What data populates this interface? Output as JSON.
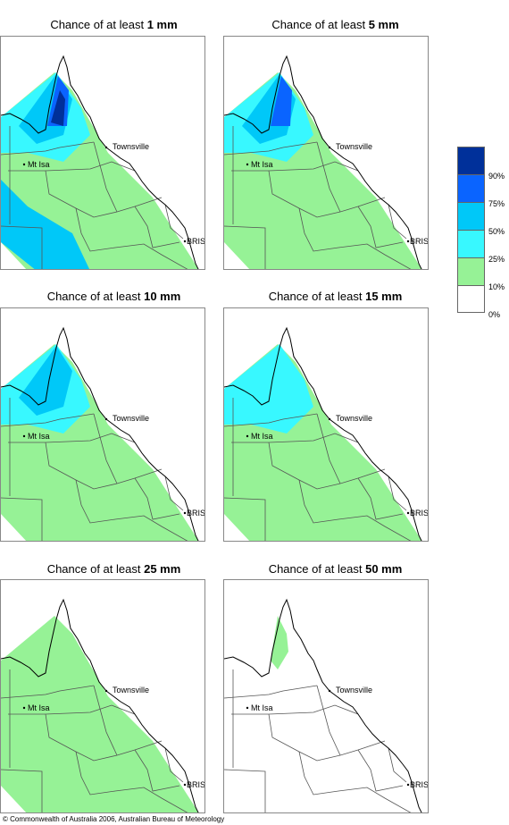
{
  "panels": [
    {
      "prefix": "Chance of at least ",
      "amount": "1 mm"
    },
    {
      "prefix": "Chance of at least ",
      "amount": "5 mm"
    },
    {
      "prefix": "Chance of at least ",
      "amount": "10 mm"
    },
    {
      "prefix": "Chance of at least ",
      "amount": "15 mm"
    },
    {
      "prefix": "Chance of at least ",
      "amount": "25 mm"
    },
    {
      "prefix": "Chance of at least ",
      "amount": "50 mm"
    }
  ],
  "places": {
    "townsville": "Townsville",
    "mt_isa": "Mt Isa",
    "bris": "BRIS"
  },
  "legend": {
    "labels": [
      "90%",
      "75%",
      "50%",
      "25%",
      "10%",
      "0%"
    ],
    "colors": [
      "#00309a",
      "#0a64ff",
      "#00c8f8",
      "#38f8ff",
      "#96f296",
      "#ffffff"
    ]
  },
  "coverage_level": [
    6,
    4,
    3,
    2.5,
    1.5,
    0.5
  ],
  "copyright": "© Commonwealth of Australia 2006, Australian Bureau of Meteorology"
}
